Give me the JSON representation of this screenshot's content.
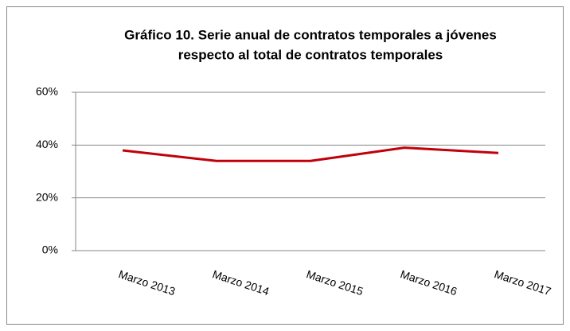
{
  "chart_data": {
    "type": "line",
    "title": [
      "Gráfico  10.  Serie anual de contratos temporales a jóvenes",
      "respecto al total de contratos temporales"
    ],
    "categories": [
      "Marzo 2013",
      "Marzo 2014",
      "Marzo 2015",
      "Marzo 2016",
      "Marzo 2017"
    ],
    "series": [
      {
        "color": "#c0000a",
        "values": [
          38,
          34,
          34,
          39,
          37
        ]
      }
    ],
    "ylim": [
      0,
      60
    ],
    "yticks": [
      {
        "value": 0,
        "label": "0%"
      },
      {
        "value": 20,
        "label": "20%"
      },
      {
        "value": 40,
        "label": "40%"
      },
      {
        "value": 60,
        "label": "60%"
      }
    ],
    "grid": true
  }
}
